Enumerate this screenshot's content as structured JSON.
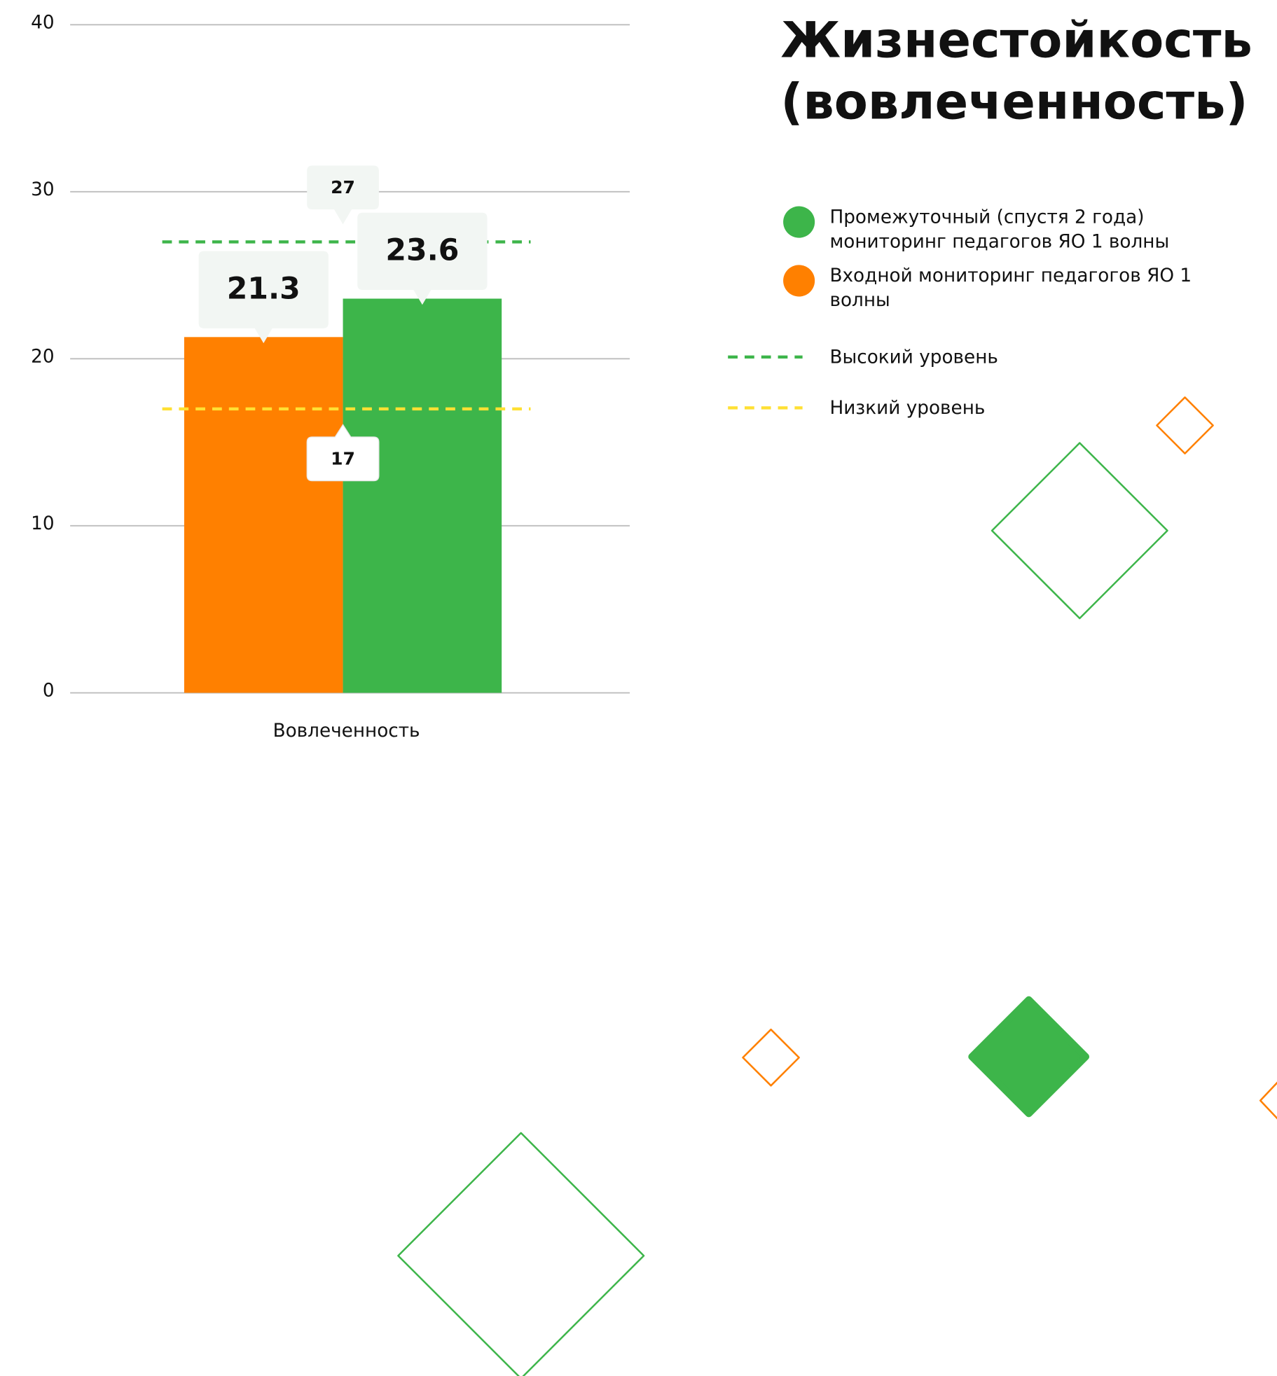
{
  "chart_data": {
    "type": "bar",
    "title": "Жизнестойкость (вовлеченность)",
    "categories": [
      "Вовлеченность"
    ],
    "series": [
      {
        "name": "Входной мониторинг педагогов ЯО 1 волны",
        "color": "#ff8000",
        "values": [
          21.3
        ]
      },
      {
        "name": "Промежуточный (спустя 2 года) мониторинг педагогов ЯО 1 волны",
        "color": "#3db54a",
        "values": [
          23.6
        ]
      }
    ],
    "reference_lines": [
      {
        "name": "Высокий уровень",
        "value": 27,
        "color": "#3db54a"
      },
      {
        "name": "Низкий уровень",
        "value": 17,
        "color": "#ffe033"
      }
    ],
    "ylim": [
      0,
      40
    ],
    "yticks": [
      0,
      10,
      20,
      30,
      40
    ],
    "grid": true
  }
}
